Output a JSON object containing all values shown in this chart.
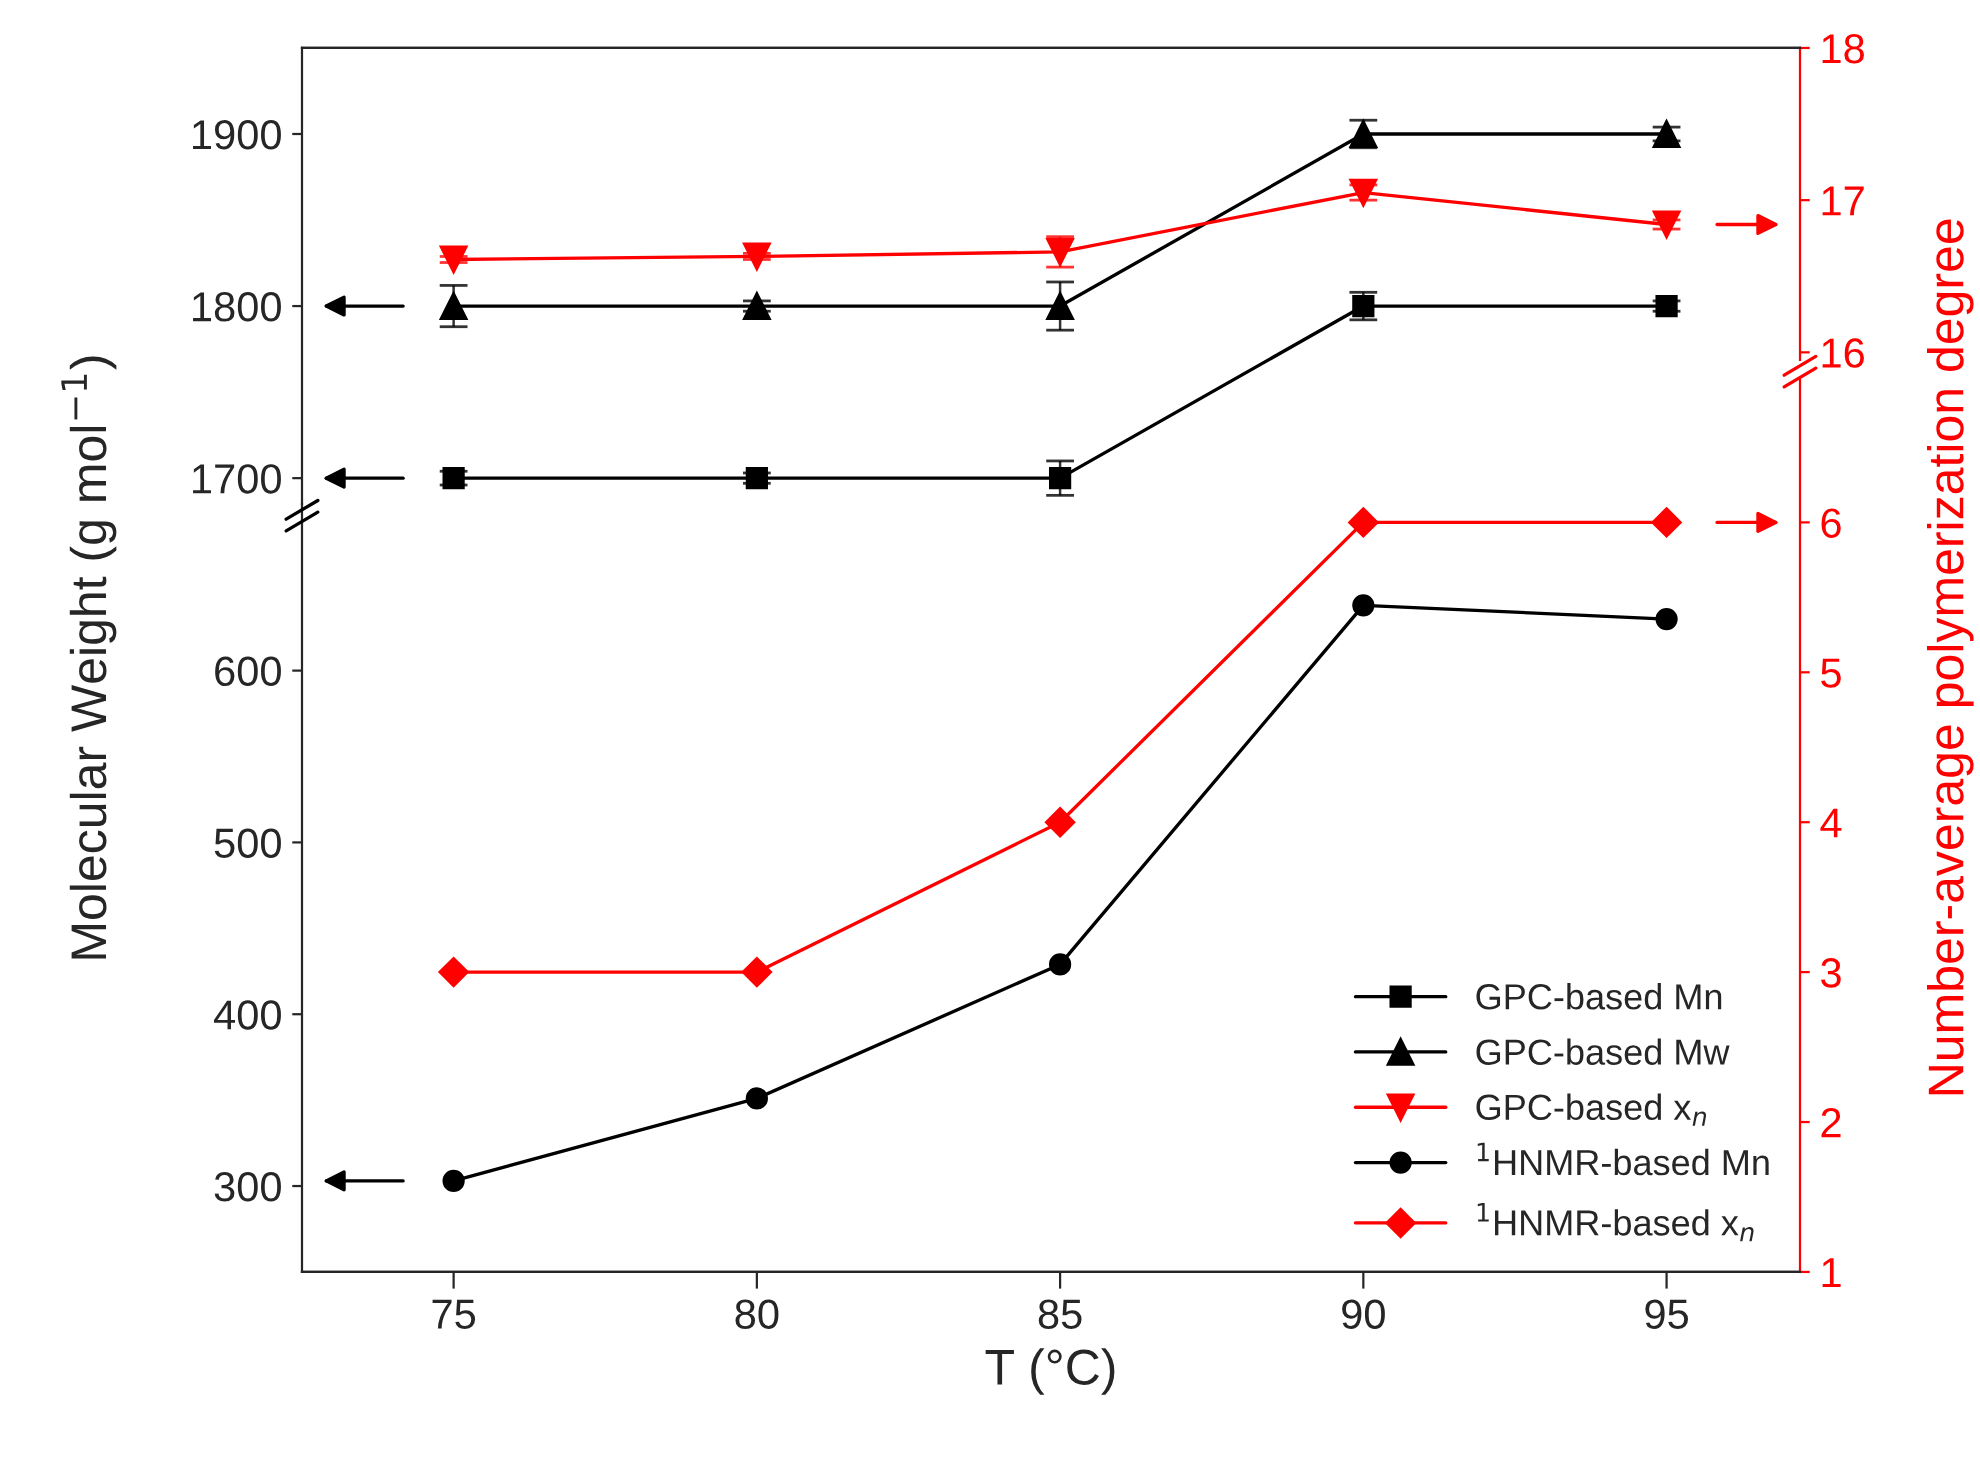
{
  "chart_data": [
    {
      "type": "line",
      "x": [
        75,
        80,
        85,
        90,
        95
      ],
      "xlim": [
        72.5,
        97.2
      ],
      "ylim": [
        1685,
        1950
      ],
      "yticks": [
        1700,
        1800,
        1900
      ],
      "y2lim": [
        15.95,
        18
      ],
      "y2ticks": [
        16,
        17,
        18
      ],
      "tick_labels": "y",
      "grid": false,
      "legend": "bottom right",
      "series": [
        {
          "name": "GPC-based Mn",
          "color": "#000000",
          "marker": "square",
          "values": [
            1700,
            1700,
            1700,
            1800,
            1800
          ],
          "errors": [
            4,
            3,
            10,
            8,
            3
          ]
        },
        {
          "name": "GPC-based Mw",
          "color": "#000000",
          "marker": "triangle",
          "values": [
            1800,
            1800,
            1800,
            1900,
            1900
          ],
          "errors": [
            12,
            3,
            14,
            8,
            4
          ]
        },
        {
          "name": "GPC-based x$_{n}$",
          "color": "#ff0000",
          "marker": "triangle_down",
          "axis": "y2",
          "values": [
            16.61,
            16.63,
            16.66,
            17.05,
            16.84
          ],
          "errors": [
            0.02,
            0.02,
            0.1,
            0.05,
            0.03
          ]
        }
      ]
    },
    {
      "type": "line",
      "x": [
        75,
        80,
        85,
        90,
        95
      ],
      "xlim": [
        72.5,
        97.2
      ],
      "xticks": [
        75,
        80,
        85,
        90,
        95
      ],
      "ylim": [
        250,
        697
      ],
      "yticks": [
        300,
        400,
        500,
        600
      ],
      "y2lim": [
        1,
        6.95
      ],
      "y2ticks": [
        1,
        2,
        3,
        4,
        5,
        6
      ],
      "xlabel": "T (°C)",
      "ylabel": "Molecular Weight (g mol$^{−1}$)",
      "y2label": "Number-average polymerization degree",
      "grid": false,
      "legend": "bottom right",
      "series": [
        {
          "name": "$^{1}$HNMR-based Mn",
          "color": "#000000",
          "marker": "circle",
          "values": [
            303,
            351,
            429,
            638,
            630
          ]
        },
        {
          "name": "$^{1}$HNMR-based x$_{n}$",
          "color": "#ff0000",
          "marker": "diamond",
          "axis": "y2",
          "values": [
            3,
            3,
            4,
            6,
            6
          ]
        }
      ]
    }
  ]
}
